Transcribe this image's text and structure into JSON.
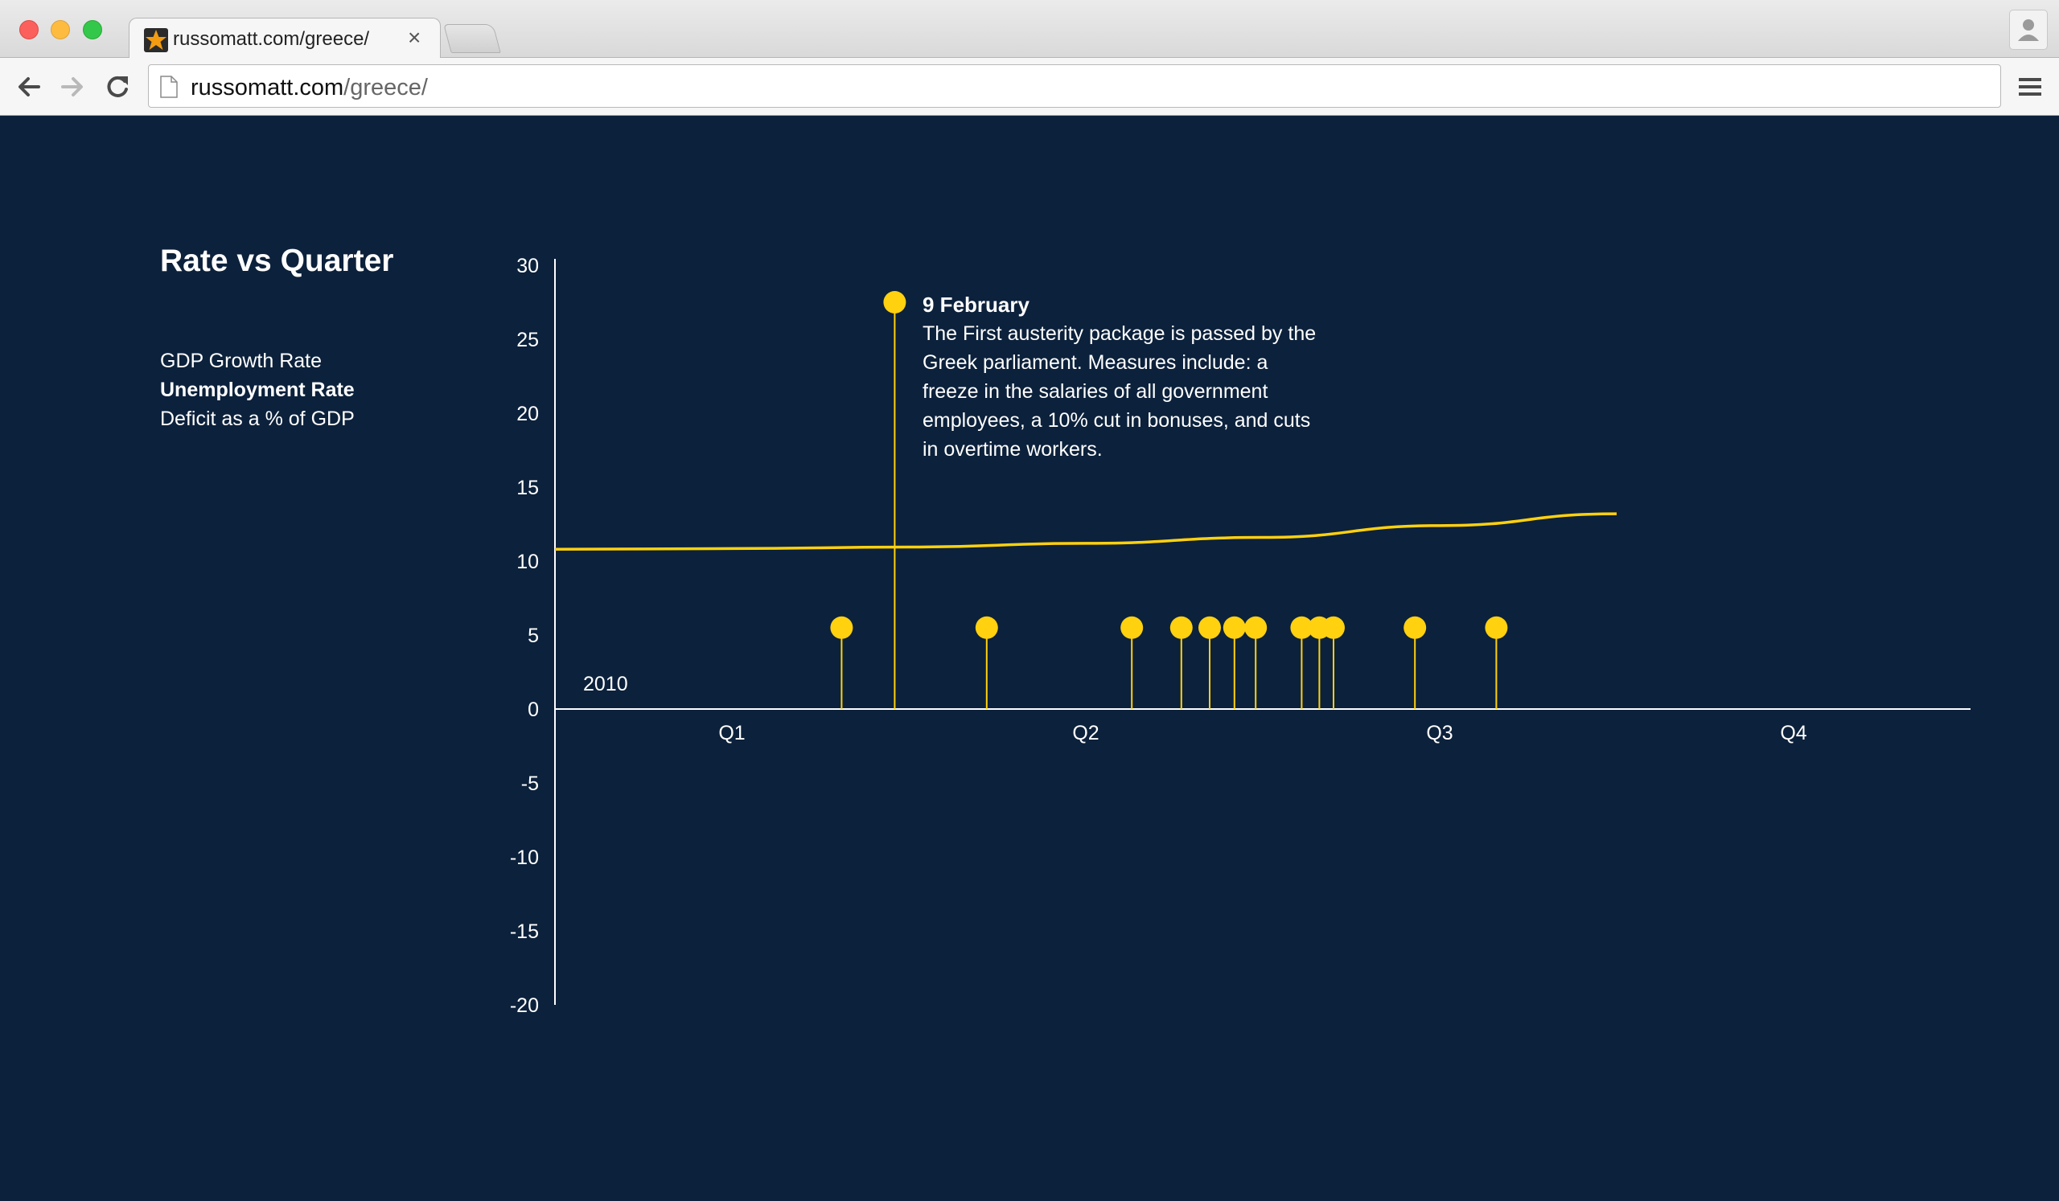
{
  "browser": {
    "tab_title": "russomatt.com/greece/",
    "tab_close": "×",
    "url_host": "russomatt.com",
    "url_path": "/greece/",
    "icons": {
      "back": "back-arrow-icon",
      "forward": "forward-arrow-icon",
      "reload": "reload-icon",
      "menu": "hamburger-menu-icon",
      "profile": "profile-person-icon",
      "favicon": "star-favicon-icon",
      "page": "page-document-icon"
    }
  },
  "sidebar": {
    "title": "Rate vs Quarter",
    "metrics": [
      {
        "label": "GDP Growth Rate",
        "selected": false
      },
      {
        "label": "Unemployment Rate",
        "selected": true
      },
      {
        "label": "Deficit as a % of GDP",
        "selected": false
      }
    ]
  },
  "annotation": {
    "date": "9 February",
    "text": "The First austerity package is passed by the Greek parliament. Measures include: a freeze in the salaries of all government employees, a 10% cut in bonuses, and cuts in overtime workers."
  },
  "colors": {
    "background": "#0c213b",
    "accent": "#ffd10f",
    "axis": "#ffffff"
  },
  "chart_data": {
    "type": "line",
    "title": "Rate vs Quarter",
    "year_label": "2010",
    "x_tick_labels": [
      "Q1",
      "Q2",
      "Q3",
      "Q4"
    ],
    "x_domain": [
      0,
      4
    ],
    "ylim": [
      -20,
      30
    ],
    "y_ticks": [
      30,
      25,
      20,
      15,
      10,
      5,
      0,
      -5,
      -10,
      -15,
      -20
    ],
    "series": [
      {
        "name": "Unemployment Rate",
        "x": [
          0,
          0.5,
          1.0,
          1.5,
          2.0,
          2.5,
          3.0
        ],
        "y": [
          10.8,
          10.85,
          10.95,
          11.2,
          11.6,
          12.4,
          13.2
        ]
      }
    ],
    "event_markers": {
      "x": [
        0.81,
        0.96,
        1.22,
        1.63,
        1.77,
        1.85,
        1.92,
        1.98,
        2.11,
        2.16,
        2.2,
        2.43,
        2.66
      ],
      "y": [
        5.5,
        27.5,
        5.5,
        5.5,
        5.5,
        5.5,
        5.5,
        5.5,
        5.5,
        5.5,
        5.5,
        5.5,
        5.5
      ],
      "highlighted_index": 1
    }
  }
}
